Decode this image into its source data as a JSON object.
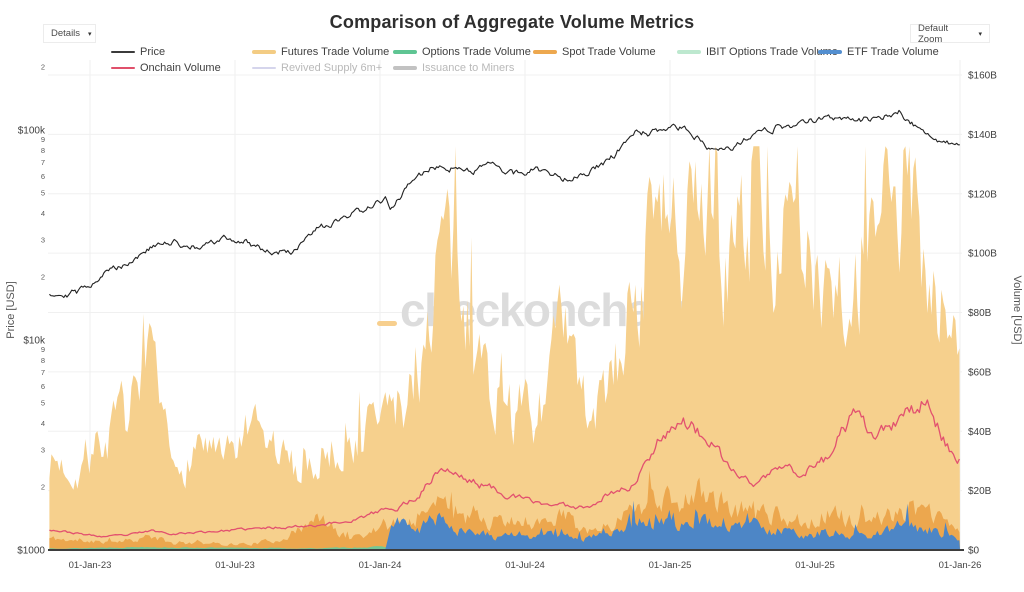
{
  "title": "Comparison of Aggregate Volume Metrics",
  "watermark": {
    "text": "checkonchain",
    "dash_color": "#f7cf8e",
    "text_color": "#dcdcdc"
  },
  "controls": {
    "details_label": "Details",
    "default_zoom_label": "Default Zoom",
    "chevron": "▾"
  },
  "legend": {
    "rows": [
      [
        {
          "label": "Price",
          "color": "#3b3b3b",
          "thick": false,
          "muted": false,
          "id": "price"
        },
        {
          "label": "Futures Trade Volume",
          "color": "#f3cc84",
          "thick": true,
          "muted": false,
          "id": "futures"
        },
        {
          "label": "Options Trade Volume",
          "color": "#5fc593",
          "thick": true,
          "muted": false,
          "id": "options"
        },
        {
          "label": "Spot Trade Volume",
          "color": "#eda84f",
          "thick": true,
          "muted": false,
          "id": "spot"
        },
        {
          "label": "IBIT Options Trade Volume",
          "color": "#bde8cf",
          "thick": true,
          "muted": false,
          "id": "ibit_options"
        },
        {
          "label": "ETF Trade Volume",
          "color": "#538fd0",
          "thick": true,
          "muted": false,
          "id": "etf"
        }
      ],
      [
        {
          "label": "Onchain Volume",
          "color": "#e0506b",
          "thick": false,
          "muted": false,
          "id": "onchain"
        },
        {
          "label": "Revived Supply 6m+",
          "color": "#b3b3dd",
          "thick": false,
          "muted": true,
          "id": "revived_supply_6m"
        },
        {
          "label": "Issuance to Miners",
          "color": "#8f8f8f",
          "thick": true,
          "muted": true,
          "id": "issuance_to_miners"
        }
      ]
    ]
  },
  "chart_data": {
    "type": "area",
    "title": "Comparison of Aggregate Volume Metrics",
    "x_unit": "decimal_year",
    "x": [
      2022.86,
      2022.96,
      2023.04,
      2023.13,
      2023.21,
      2023.29,
      2023.38,
      2023.46,
      2023.54,
      2023.63,
      2023.71,
      2023.79,
      2023.88,
      2023.96,
      2024.02,
      2024.04,
      2024.13,
      2024.21,
      2024.29,
      2024.38,
      2024.46,
      2024.54,
      2024.63,
      2024.71,
      2024.79,
      2024.88,
      2024.96,
      2025.04,
      2025.13,
      2025.21,
      2025.29,
      2025.38,
      2025.46,
      2025.54,
      2025.63,
      2025.71,
      2025.79,
      2025.88,
      2025.96,
      2026.0
    ],
    "x_axis": {
      "ticks": [
        {
          "label": "01-Jan-23",
          "t": 2023.0
        },
        {
          "label": "01-Jul-23",
          "t": 2023.5
        },
        {
          "label": "01-Jan-24",
          "t": 2024.0
        },
        {
          "label": "01-Jul-24",
          "t": 2024.5
        },
        {
          "label": "01-Jan-25",
          "t": 2025.0
        },
        {
          "label": "01-Jul-25",
          "t": 2025.5
        },
        {
          "label": "01-Jan-26",
          "t": 2026.0
        }
      ]
    },
    "price_axis": {
      "title": "Price [USD]",
      "scale": "log",
      "range_usd": [
        1000,
        200000
      ],
      "ticks": [
        {
          "label": "2",
          "usd": 200000,
          "minor": true
        },
        {
          "label": "$100k",
          "usd": 100000,
          "minor": false
        },
        {
          "label": "9",
          "usd": 90000,
          "minor": true
        },
        {
          "label": "8",
          "usd": 80000,
          "minor": true
        },
        {
          "label": "7",
          "usd": 70000,
          "minor": true
        },
        {
          "label": "6",
          "usd": 60000,
          "minor": true
        },
        {
          "label": "5",
          "usd": 50000,
          "minor": true
        },
        {
          "label": "4",
          "usd": 40000,
          "minor": true
        },
        {
          "label": "3",
          "usd": 30000,
          "minor": true
        },
        {
          "label": "2",
          "usd": 20000,
          "minor": true
        },
        {
          "label": "$10k",
          "usd": 10000,
          "minor": false
        },
        {
          "label": "9",
          "usd": 9000,
          "minor": true
        },
        {
          "label": "8",
          "usd": 8000,
          "minor": true
        },
        {
          "label": "7",
          "usd": 7000,
          "minor": true
        },
        {
          "label": "6",
          "usd": 6000,
          "minor": true
        },
        {
          "label": "5",
          "usd": 5000,
          "minor": true
        },
        {
          "label": "4",
          "usd": 4000,
          "minor": true
        },
        {
          "label": "3",
          "usd": 3000,
          "minor": true
        },
        {
          "label": "2",
          "usd": 2000,
          "minor": true
        },
        {
          "label": "$1000",
          "usd": 1000,
          "minor": false
        }
      ]
    },
    "volume_axis": {
      "title": "Volume [USD]",
      "scale": "linear",
      "range_billions": [
        0,
        160
      ],
      "ticks": [
        {
          "label": "$0",
          "b": 0
        },
        {
          "label": "$20B",
          "b": 20
        },
        {
          "label": "$40B",
          "b": 40
        },
        {
          "label": "$60B",
          "b": 60
        },
        {
          "label": "$80B",
          "b": 80
        },
        {
          "label": "$100B",
          "b": 100
        },
        {
          "label": "$120B",
          "b": 120
        },
        {
          "label": "$140B",
          "b": 140
        },
        {
          "label": "$160B",
          "b": 160
        }
      ]
    },
    "series": [
      {
        "id": "futures",
        "name": "Futures Trade Volume",
        "type": "area",
        "axis": "volume",
        "unit": "USD_billions",
        "color": "#f6d08d",
        "values": [
          30,
          27,
          36,
          45,
          58,
          24,
          38,
          28,
          38,
          34,
          27,
          30,
          36,
          42,
          46,
          45,
          58,
          106,
          80,
          56,
          48,
          44,
          72,
          46,
          52,
          88,
          112,
          96,
          116,
          94,
          128,
          106,
          92,
          102,
          86,
          96,
          122,
          106,
          74,
          58
        ]
      },
      {
        "id": "spot",
        "name": "Spot Trade Volume",
        "type": "area",
        "axis": "volume",
        "unit": "USD_billions",
        "color": "#eca74e",
        "values": [
          4,
          3,
          3,
          3.5,
          4.5,
          2,
          2.5,
          2,
          2,
          3,
          6,
          10.5,
          4.5,
          5.5,
          9,
          8,
          12,
          15,
          14,
          10,
          8,
          8,
          12,
          7,
          8,
          15,
          18,
          16,
          20,
          12,
          15,
          11,
          10,
          12,
          10,
          10,
          14,
          12,
          9,
          7
        ]
      },
      {
        "id": "options",
        "name": "Options Trade Volume",
        "type": "area",
        "axis": "volume",
        "unit": "USD_billions",
        "color": "#74c795",
        "values": [
          0.6,
          0.6,
          0.8,
          0.9,
          1.1,
          0.8,
          0.8,
          0.7,
          0.7,
          0.7,
          0.5,
          0.6,
          0.8,
          1.0,
          1.1,
          1.1,
          1.5,
          2.0,
          1.5,
          1.2,
          1.0,
          1.0,
          1.5,
          1.0,
          1.1,
          2.0,
          2.2,
          2.0,
          2.2,
          1.6,
          2.0,
          1.6,
          1.5,
          1.6,
          1.5,
          1.6,
          2.2,
          2.0,
          1.5,
          1.2
        ]
      },
      {
        "id": "ibit_options",
        "name": "IBIT Options Trade Volume",
        "type": "area",
        "axis": "volume",
        "unit": "USD_billions",
        "color": "#bfe9d2",
        "values": [
          0,
          0,
          0,
          0,
          0,
          0,
          0,
          0,
          0,
          0,
          0,
          0,
          0,
          0,
          0,
          0,
          0,
          0,
          0,
          0,
          0,
          0,
          0,
          0,
          0,
          0.4,
          0.8,
          1.0,
          1.2,
          0.8,
          1.0,
          0.8,
          0.8,
          0.9,
          0.8,
          0.9,
          1.2,
          1.0,
          0.8,
          0.7
        ]
      },
      {
        "id": "etf",
        "name": "ETF Trade Volume",
        "type": "area",
        "axis": "volume",
        "unit": "USD_billions",
        "color": "#4d86c6",
        "values": [
          0,
          0,
          0,
          0,
          0,
          0,
          0,
          0,
          0,
          0,
          0,
          0,
          0,
          0,
          0.2,
          9,
          7,
          12,
          6,
          5,
          4,
          4,
          6,
          4,
          5,
          9,
          9,
          8,
          10,
          7,
          8,
          6,
          5,
          6,
          5,
          5,
          8,
          7,
          5,
          4
        ]
      },
      {
        "id": "onchain",
        "name": "Onchain Volume",
        "type": "line",
        "axis": "volume",
        "unit": "USD_billions",
        "color": "#e2516f",
        "values": [
          7,
          5.5,
          4.5,
          5,
          6.5,
          5.5,
          6,
          6.5,
          7,
          7.5,
          8,
          8.5,
          9.5,
          11.5,
          14,
          13,
          18,
          28,
          24,
          21,
          18,
          16,
          15,
          14.5,
          19,
          22,
          38,
          44,
          37,
          27,
          22,
          28,
          26,
          31,
          45,
          38,
          43,
          51,
          34,
          30
        ]
      },
      {
        "id": "price",
        "name": "Price",
        "type": "line",
        "axis": "price",
        "unit": "USD_thousands",
        "color": "#222222",
        "values": [
          16.8,
          16.9,
          20.5,
          23.5,
          27.5,
          29.2,
          27.2,
          30.2,
          29.4,
          26.1,
          26.6,
          33.8,
          37.4,
          43.2,
          46.0,
          42.6,
          60.0,
          69.5,
          64.0,
          67.8,
          61.5,
          65.2,
          59.4,
          63.2,
          69.8,
          96.5,
          97.2,
          102.3,
          85.0,
          83.5,
          93.4,
          104.8,
          106.2,
          117.5,
          111.8,
          113.6,
          121.5,
          95.3,
          86.4,
          88.2
        ]
      }
    ],
    "hidden_series": [
      {
        "name": "Revived Supply 6m+",
        "color": "#b3b3dd"
      },
      {
        "name": "Issuance to Miners",
        "color": "#8f8f8f"
      }
    ],
    "legend_position": "top",
    "grid": true
  }
}
